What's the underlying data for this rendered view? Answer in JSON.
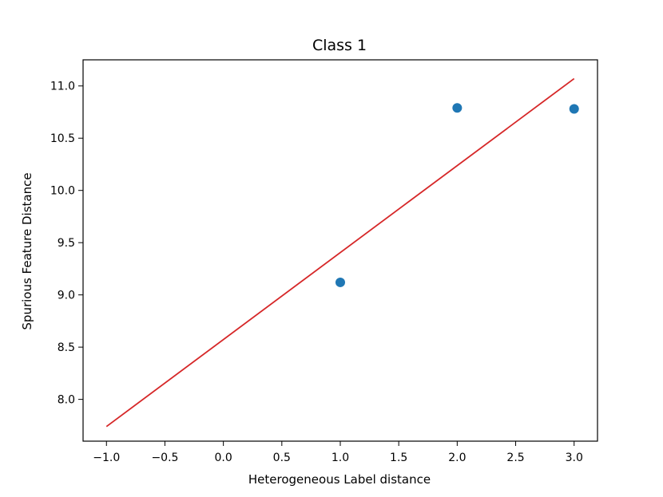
{
  "chart_data": {
    "type": "scatter",
    "title": "Class 1",
    "xlabel": "Heterogeneous Label distance",
    "ylabel": "Spurious Feature Distance",
    "xlim": [
      -1.2,
      3.2
    ],
    "ylim": [
      7.6,
      11.25
    ],
    "xticks": [
      -1.0,
      -0.5,
      0.0,
      0.5,
      1.0,
      1.5,
      2.0,
      2.5,
      3.0
    ],
    "xtick_labels": [
      "−1.0",
      "−0.5",
      "0.0",
      "0.5",
      "1.0",
      "1.5",
      "2.0",
      "2.5",
      "3.0"
    ],
    "yticks": [
      8.0,
      8.5,
      9.0,
      9.5,
      10.0,
      10.5,
      11.0
    ],
    "ytick_labels": [
      "8.0",
      "8.5",
      "9.0",
      "9.5",
      "10.0",
      "10.5",
      "11.0"
    ],
    "grid": false,
    "series": [
      {
        "kind": "scatter",
        "color": "#1f77b4",
        "x": [
          1.0,
          2.0,
          3.0
        ],
        "y": [
          9.12,
          10.79,
          10.78
        ]
      },
      {
        "kind": "line",
        "color": "#d62728",
        "x": [
          -1.0,
          3.0
        ],
        "y": [
          7.74,
          11.07
        ]
      }
    ]
  }
}
